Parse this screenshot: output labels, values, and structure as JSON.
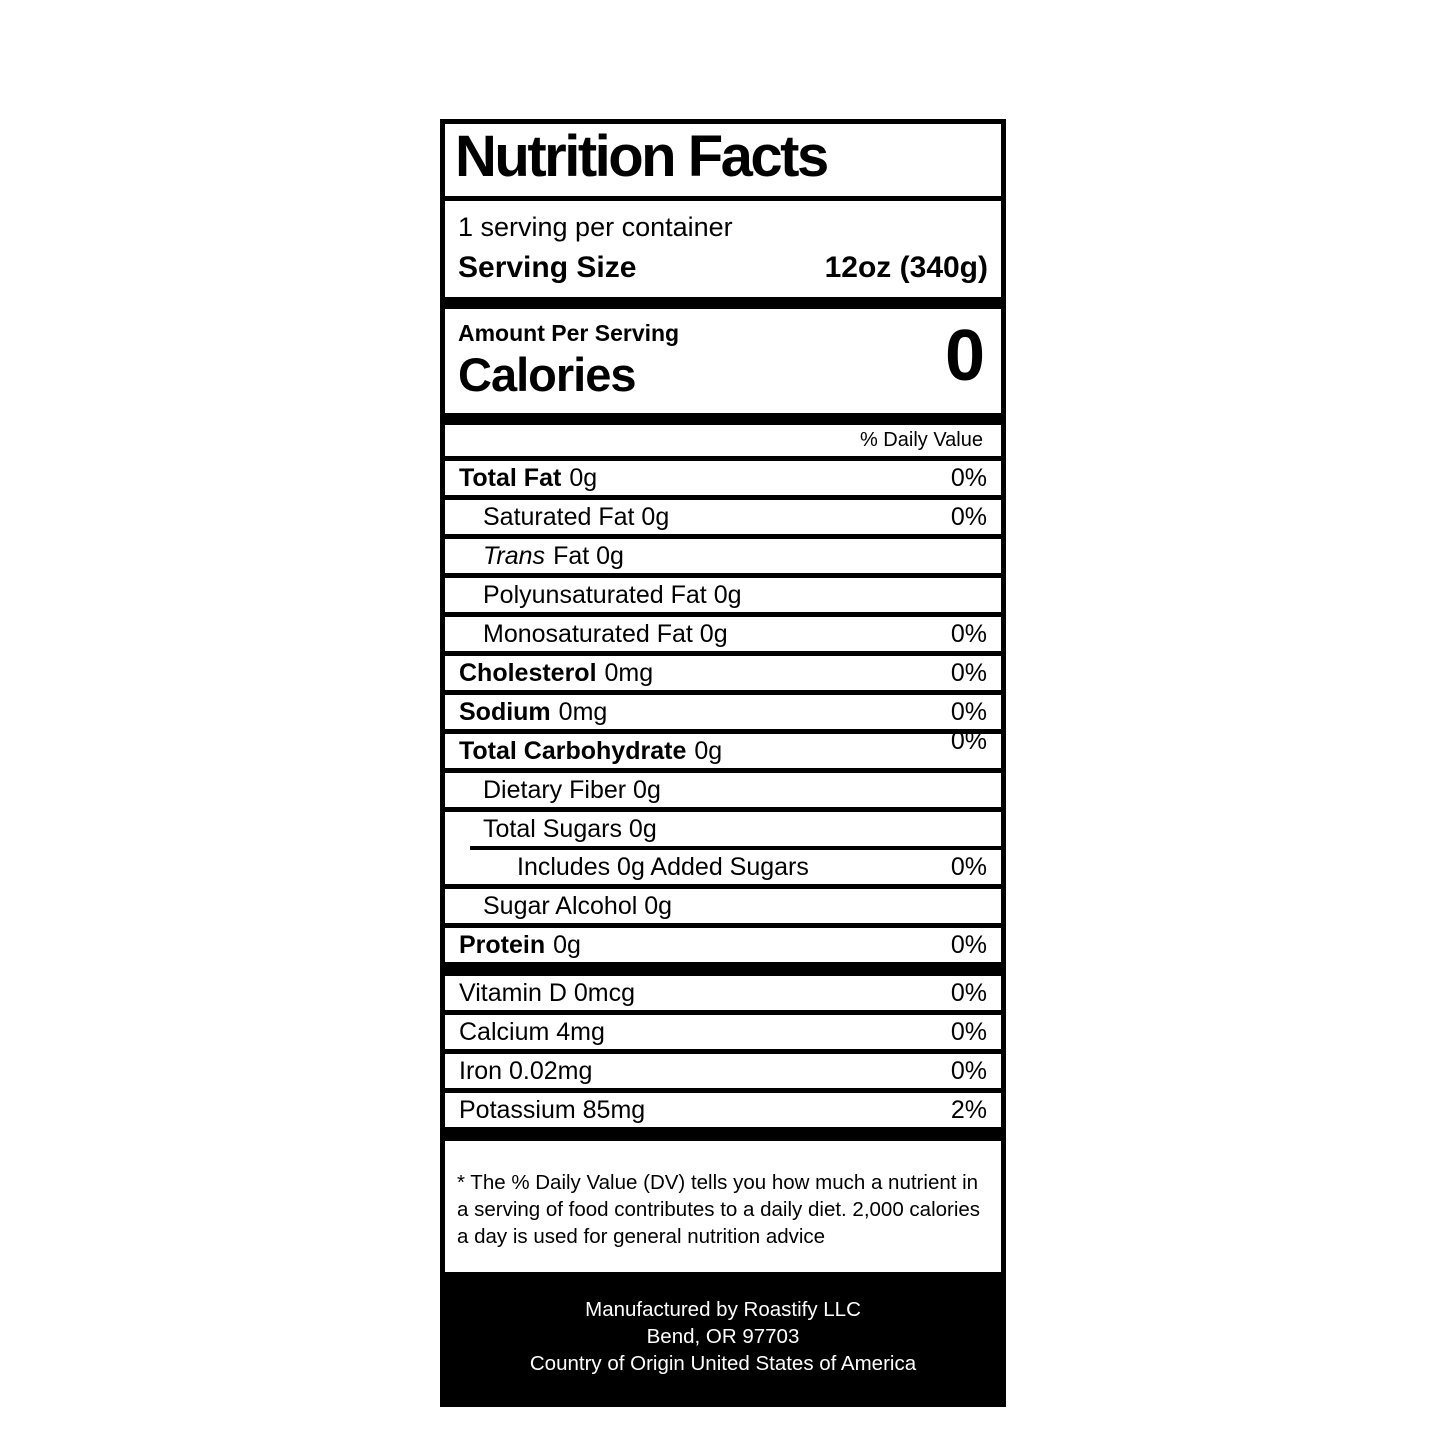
{
  "label": {
    "title": "Nutrition Facts",
    "servings_per_container": "1 serving per container",
    "serving_size_label": "Serving Size",
    "serving_size_value": "12oz (340g)",
    "amount_per_serving": "Amount Per Serving",
    "calories_label": "Calories",
    "calories_value": "0",
    "daily_value_header": "% Daily Value",
    "rows": {
      "total_fat": {
        "name": "Total Fat",
        "amount": "0g",
        "dv": "0%"
      },
      "saturated_fat": {
        "name": "Saturated Fat 0g",
        "dv": "0%"
      },
      "trans_fat": {
        "italic": "Trans",
        "rest": "Fat 0g"
      },
      "polyunsaturated_fat": {
        "name": "Polyunsaturated Fat 0g"
      },
      "monosaturated_fat": {
        "name": "Monosaturated Fat 0g",
        "dv": "0%"
      },
      "cholesterol": {
        "name": "Cholesterol",
        "amount": "0mg",
        "dv": "0%"
      },
      "sodium": {
        "name": "Sodium",
        "amount": "0mg",
        "dv": "0%"
      },
      "total_carbohydrate": {
        "name": "Total Carbohydrate",
        "amount": "0g",
        "dv": "0%"
      },
      "dietary_fiber": {
        "name": "Dietary Fiber 0g"
      },
      "total_sugars": {
        "name": "Total Sugars 0g"
      },
      "added_sugars": {
        "name": "Includes 0g Added Sugars",
        "dv": "0%"
      },
      "sugar_alcohol": {
        "name": "Sugar Alcohol 0g"
      },
      "protein": {
        "name": "Protein",
        "amount": "0g",
        "dv": "0%"
      }
    },
    "micronutrients": [
      {
        "name": "Vitamin D 0mcg",
        "dv": "0%"
      },
      {
        "name": "Calcium 4mg",
        "dv": "0%"
      },
      {
        "name": "Iron 0.02mg",
        "dv": "0%"
      },
      {
        "name": "Potassium 85mg",
        "dv": "2%"
      }
    ],
    "footnote_lines": [
      "* The % Daily Value (DV) tells you how much a nutrient in",
      "a serving of food contributes to a daily diet. 2,000 calories",
      "a day is used for general nutrition advice"
    ],
    "footer_lines": [
      "Manufactured by Roastify LLC",
      "Bend, OR 97703",
      "Country of Origin United States of America"
    ],
    "colors": {
      "ink": "#000000",
      "paper": "#ffffff"
    }
  }
}
